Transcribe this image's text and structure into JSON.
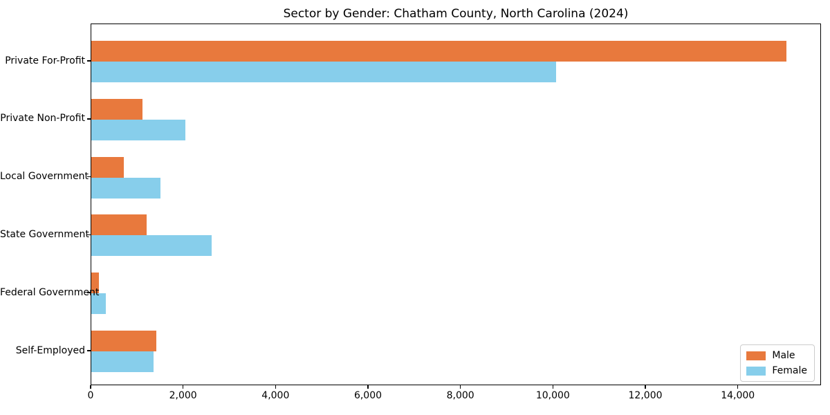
{
  "chart_data": {
    "type": "bar",
    "orientation": "horizontal",
    "title": "Sector by Gender: Chatham County, North Carolina (2024)",
    "xlabel": "",
    "ylabel": "",
    "categories": [
      "Private For-Profit",
      "Private Non-Profit",
      "Local Government",
      "State Government",
      "Federal Government",
      "Self-Employed"
    ],
    "series": [
      {
        "name": "Male",
        "color": "#e8793d",
        "values": [
          15030,
          1110,
          710,
          1200,
          160,
          1410
        ]
      },
      {
        "name": "Female",
        "color": "#87ceeb",
        "values": [
          10050,
          2040,
          1500,
          2600,
          320,
          1340
        ]
      }
    ],
    "xlim": [
      0,
      15800
    ],
    "xticks": [
      0,
      2000,
      4000,
      6000,
      8000,
      10000,
      12000,
      14000
    ],
    "xtick_labels": [
      "0",
      "2,000",
      "4,000",
      "6,000",
      "8,000",
      "10,000",
      "12,000",
      "14,000"
    ],
    "grid": false,
    "legend": {
      "position": "lower right",
      "entries": [
        "Male",
        "Female"
      ]
    },
    "colors": {
      "axis": "#000000",
      "legend_border": "#cccccc",
      "background": "#ffffff"
    }
  }
}
